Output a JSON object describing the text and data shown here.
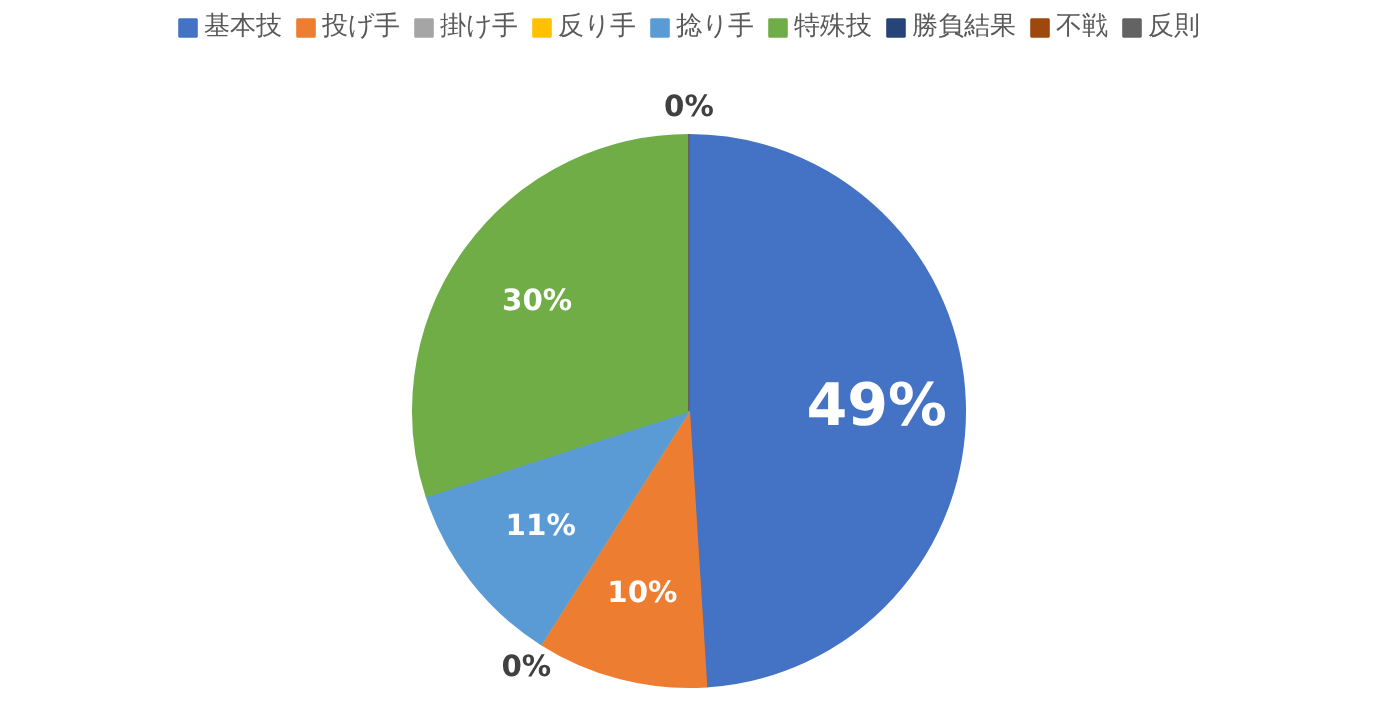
{
  "chart_data": {
    "type": "pie",
    "categories": [
      "基本技",
      "投げ手",
      "掛け手",
      "反り手",
      "捻り手",
      "特殊技",
      "勝負結果",
      "不戦",
      "反則"
    ],
    "values": [
      49,
      10,
      0,
      0,
      11,
      30,
      0,
      0,
      0
    ],
    "colors": [
      "#4472c4",
      "#ed7d31",
      "#a5a5a5",
      "#ffc000",
      "#5b9bd5",
      "#70ad47",
      "#264478",
      "#9e480e",
      "#636363"
    ],
    "value_labels": [
      "49%",
      "10%",
      "0%",
      null,
      "11%",
      "30%",
      "0%",
      null,
      null
    ],
    "legend": "top"
  }
}
